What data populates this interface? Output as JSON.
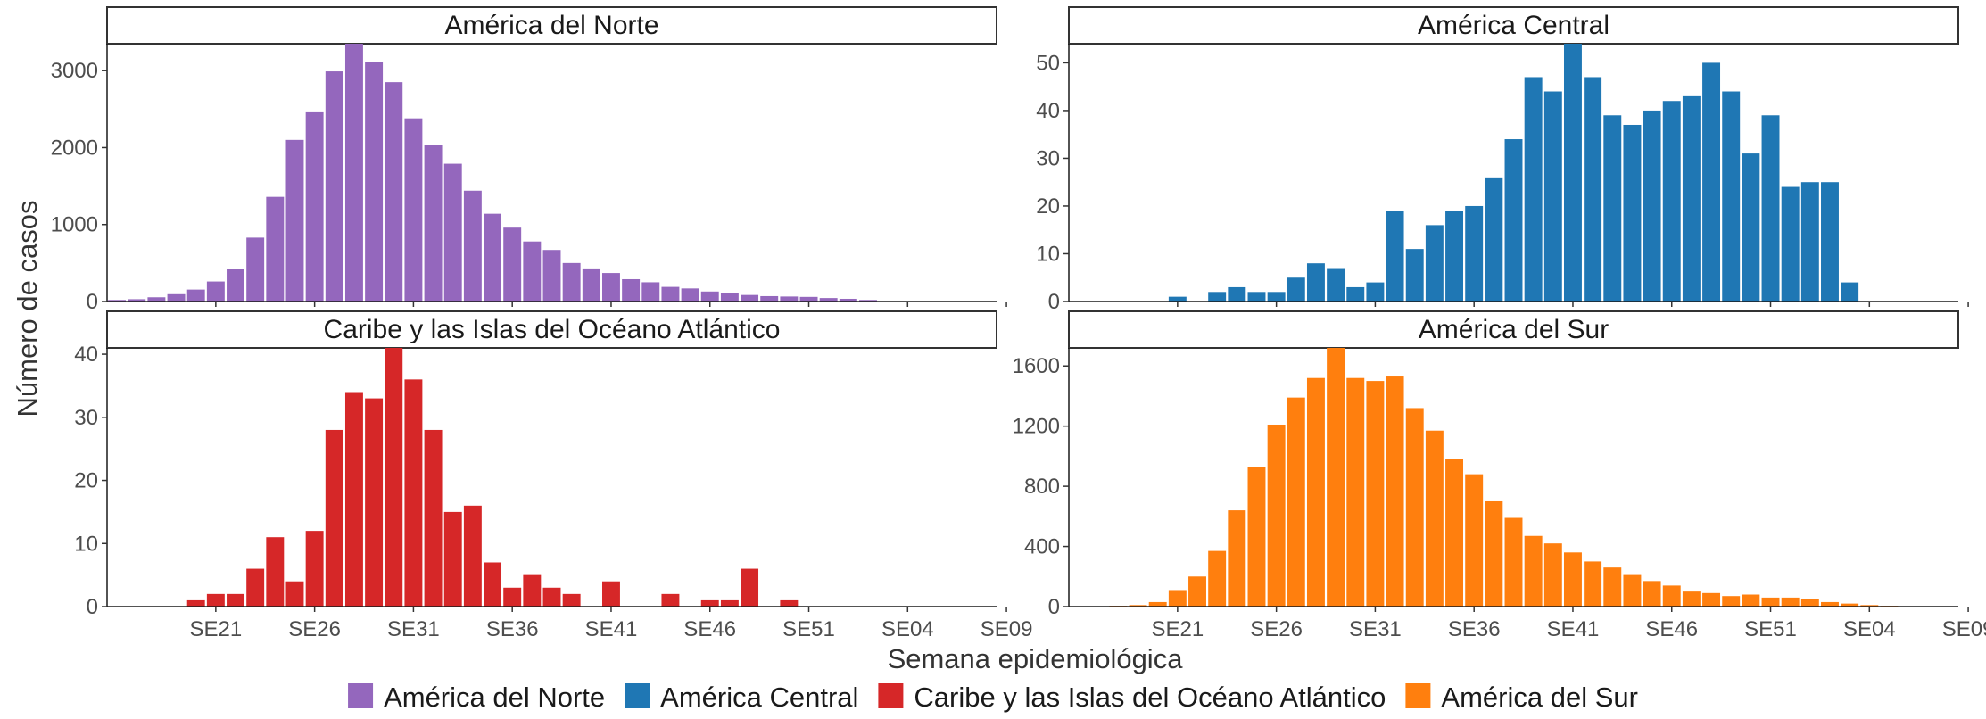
{
  "chart_data": {
    "type": "bar",
    "layout": "facet-grid 2x2",
    "xlabel": "Semana epidemiológica",
    "ylabel": "Número de casos",
    "x_tick_labels": [
      "SE21",
      "SE26",
      "SE31",
      "SE36",
      "SE41",
      "SE46",
      "SE51",
      "SE04",
      "SE09"
    ],
    "legend": {
      "position": "bottom",
      "entries": [
        {
          "name": "América del Norte",
          "color": "#9467bd"
        },
        {
          "name": "América Central",
          "color": "#1f77b4"
        },
        {
          "name": "Caribe y las Islas del Océano Atlántico",
          "color": "#d62728"
        },
        {
          "name": "América del Sur",
          "color": "#ff7f0e"
        }
      ]
    },
    "grid": false,
    "panels": [
      {
        "title": "América del Norte",
        "color": "#9467bd",
        "ylim": [
          0,
          3350
        ],
        "y_ticks": [
          0,
          1000,
          2000,
          3000
        ],
        "start_week_index": 0,
        "values": [
          20,
          30,
          55,
          95,
          155,
          260,
          420,
          830,
          1360,
          2100,
          2470,
          2990,
          3350,
          3110,
          2850,
          2380,
          2030,
          1790,
          1440,
          1140,
          960,
          780,
          670,
          500,
          430,
          370,
          290,
          250,
          190,
          170,
          130,
          110,
          85,
          70,
          65,
          60,
          45,
          35,
          20
        ]
      },
      {
        "title": "América Central",
        "color": "#1f77b4",
        "ylim": [
          0,
          54
        ],
        "y_ticks": [
          0,
          10,
          20,
          30,
          40,
          50
        ],
        "start_week_index": 5,
        "values": [
          1,
          0,
          2,
          3,
          2,
          2,
          5,
          8,
          7,
          3,
          4,
          19,
          11,
          16,
          19,
          20,
          26,
          34,
          47,
          44,
          54,
          47,
          39,
          37,
          40,
          42,
          43,
          50,
          44,
          31,
          39,
          24,
          25,
          25,
          4
        ]
      },
      {
        "title": "Caribe y las Islas del Océano Atlántico",
        "color": "#d62728",
        "ylim": [
          0,
          41
        ],
        "y_ticks": [
          0,
          10,
          20,
          30,
          40
        ],
        "start_week_index": 4,
        "values": [
          1,
          2,
          2,
          6,
          11,
          4,
          12,
          28,
          34,
          33,
          41,
          36,
          28,
          15,
          16,
          7,
          3,
          5,
          3,
          2,
          0,
          4,
          0,
          0,
          2,
          0,
          1,
          1,
          6,
          0,
          1
        ]
      },
      {
        "title": "América del Sur",
        "color": "#ff7f0e",
        "ylim": [
          0,
          1720
        ],
        "y_ticks": [
          0,
          400,
          800,
          1200,
          1600
        ],
        "start_week_index": 1,
        "values": [
          2,
          5,
          10,
          30,
          110,
          200,
          370,
          640,
          930,
          1210,
          1390,
          1520,
          1720,
          1520,
          1500,
          1530,
          1320,
          1170,
          980,
          880,
          700,
          590,
          470,
          420,
          360,
          300,
          260,
          210,
          170,
          140,
          100,
          90,
          70,
          80,
          60,
          60,
          50,
          30,
          20,
          10,
          5
        ]
      }
    ]
  }
}
